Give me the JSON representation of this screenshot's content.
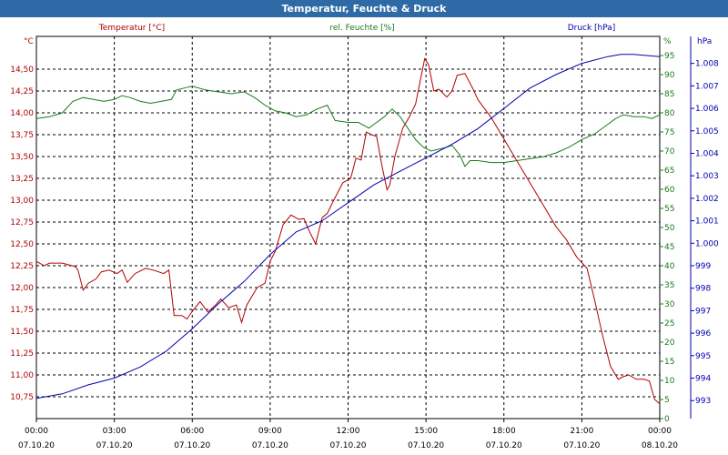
{
  "window": {
    "title": "Temperatur, Feuchte & Druck"
  },
  "colors": {
    "temperature": "#b00000",
    "humidity": "#1a7a1a",
    "pressure": "#0000b0",
    "grid": "#000000",
    "titlebar": "#2d6aa6"
  },
  "chart_data": {
    "type": "line",
    "title": "Temperatur, Feuchte & Druck",
    "x_labels": [
      {
        "time": "00:00",
        "date": "07.10.20"
      },
      {
        "time": "03:00",
        "date": "07.10.20"
      },
      {
        "time": "06:00",
        "date": "07.10.20"
      },
      {
        "time": "09:00",
        "date": "07.10.20"
      },
      {
        "time": "12:00",
        "date": "07.10.20"
      },
      {
        "time": "15:00",
        "date": "07.10.20"
      },
      {
        "time": "18:00",
        "date": "07.10.20"
      },
      {
        "time": "21:00",
        "date": "07.10.20"
      },
      {
        "time": "00:00",
        "date": "08.10.20"
      }
    ],
    "x_range_hours": [
      0,
      24
    ],
    "axes": {
      "temperature": {
        "label": "Temperatur [°C]",
        "unit": "°C",
        "range": [
          10.5,
          14.875
        ],
        "ticks": [
          "14,50",
          "14,25",
          "14,00",
          "13,75",
          "13,50",
          "13,25",
          "13,00",
          "12,75",
          "12,50",
          "12,25",
          "12,00",
          "11,75",
          "11,50",
          "11,25",
          "11,00",
          "10,75"
        ]
      },
      "humidity": {
        "label": "rel. Feuchte [%]",
        "unit": "%",
        "range": [
          0,
          100
        ],
        "ticks": [
          "95",
          "90",
          "85",
          "80",
          "75",
          "70",
          "65",
          "60",
          "55",
          "50",
          "45",
          "40",
          "35",
          "30",
          "25",
          "20",
          "15",
          "10",
          "5",
          "0"
        ]
      },
      "pressure": {
        "label": "Druck [hPa]",
        "unit": "hPa",
        "range": [
          992.2,
          1009.2
        ],
        "ticks": [
          "1.008",
          "1.007",
          "1.006",
          "1.005",
          "1.004",
          "1.003",
          "1.002",
          "1.001",
          "1.000",
          "999",
          "998",
          "997",
          "996",
          "995",
          "994",
          "993"
        ]
      }
    },
    "series": [
      {
        "name": "Temperatur",
        "axis": "temperature",
        "points": [
          [
            0,
            12.3
          ],
          [
            0.3,
            12.25
          ],
          [
            0.5,
            12.28
          ],
          [
            1.0,
            12.28
          ],
          [
            1.5,
            12.24
          ],
          [
            1.6,
            12.2
          ],
          [
            1.8,
            11.97
          ],
          [
            2.0,
            12.05
          ],
          [
            2.3,
            12.1
          ],
          [
            2.5,
            12.18
          ],
          [
            2.8,
            12.2
          ],
          [
            3.1,
            12.16
          ],
          [
            3.3,
            12.2
          ],
          [
            3.5,
            12.06
          ],
          [
            3.8,
            12.16
          ],
          [
            4.2,
            12.22
          ],
          [
            4.5,
            12.2
          ],
          [
            4.9,
            12.16
          ],
          [
            5.1,
            12.2
          ],
          [
            5.3,
            11.68
          ],
          [
            5.6,
            11.68
          ],
          [
            5.8,
            11.64
          ],
          [
            6.0,
            11.73
          ],
          [
            6.3,
            11.84
          ],
          [
            6.6,
            11.72
          ],
          [
            6.9,
            11.8
          ],
          [
            7.1,
            11.87
          ],
          [
            7.4,
            11.77
          ],
          [
            7.7,
            11.8
          ],
          [
            7.9,
            11.6
          ],
          [
            8.1,
            11.8
          ],
          [
            8.5,
            12.0
          ],
          [
            8.8,
            12.05
          ],
          [
            9.0,
            12.3
          ],
          [
            9.2,
            12.42
          ],
          [
            9.5,
            12.72
          ],
          [
            9.8,
            12.83
          ],
          [
            10.1,
            12.78
          ],
          [
            10.3,
            12.79
          ],
          [
            10.5,
            12.65
          ],
          [
            10.75,
            12.5
          ],
          [
            11.0,
            12.8
          ],
          [
            11.2,
            12.85
          ],
          [
            11.5,
            13.03
          ],
          [
            11.8,
            13.2
          ],
          [
            12.1,
            13.25
          ],
          [
            12.3,
            13.48
          ],
          [
            12.5,
            13.46
          ],
          [
            12.7,
            13.78
          ],
          [
            12.9,
            13.75
          ],
          [
            13.1,
            13.73
          ],
          [
            13.3,
            13.4
          ],
          [
            13.5,
            13.12
          ],
          [
            13.6,
            13.17
          ],
          [
            13.8,
            13.5
          ],
          [
            14.1,
            13.82
          ],
          [
            14.35,
            13.95
          ],
          [
            14.6,
            14.1
          ],
          [
            14.8,
            14.4
          ],
          [
            14.95,
            14.62
          ],
          [
            15.1,
            14.55
          ],
          [
            15.3,
            14.25
          ],
          [
            15.5,
            14.27
          ],
          [
            15.8,
            14.18
          ],
          [
            16.0,
            14.25
          ],
          [
            16.2,
            14.43
          ],
          [
            16.5,
            14.45
          ],
          [
            16.8,
            14.28
          ],
          [
            17.0,
            14.15
          ],
          [
            17.5,
            13.95
          ],
          [
            18.0,
            13.7
          ],
          [
            18.5,
            13.45
          ],
          [
            19.0,
            13.2
          ],
          [
            19.5,
            12.95
          ],
          [
            20.0,
            12.7
          ],
          [
            20.4,
            12.55
          ],
          [
            20.8,
            12.35
          ],
          [
            21.2,
            12.22
          ],
          [
            21.5,
            11.85
          ],
          [
            21.8,
            11.45
          ],
          [
            22.1,
            11.1
          ],
          [
            22.4,
            10.95
          ],
          [
            22.6,
            10.98
          ],
          [
            22.8,
            11.0
          ],
          [
            23.1,
            10.95
          ],
          [
            23.4,
            10.95
          ],
          [
            23.6,
            10.93
          ],
          [
            23.8,
            10.72
          ],
          [
            24.0,
            10.67
          ]
        ]
      },
      {
        "name": "rel. Feuchte",
        "axis": "humidity",
        "points": [
          [
            0,
            78.5
          ],
          [
            0.5,
            79
          ],
          [
            1.0,
            80
          ],
          [
            1.4,
            83
          ],
          [
            1.8,
            84
          ],
          [
            2.2,
            83.5
          ],
          [
            2.6,
            83
          ],
          [
            3.0,
            83.5
          ],
          [
            3.3,
            84.5
          ],
          [
            3.6,
            84
          ],
          [
            4.0,
            83
          ],
          [
            4.4,
            82.5
          ],
          [
            4.8,
            83
          ],
          [
            5.2,
            83.5
          ],
          [
            5.4,
            86
          ],
          [
            5.7,
            86.5
          ],
          [
            6.0,
            87
          ],
          [
            6.5,
            86
          ],
          [
            7.0,
            85.5
          ],
          [
            7.5,
            85
          ],
          [
            8.0,
            85.5
          ],
          [
            8.4,
            84
          ],
          [
            8.8,
            82
          ],
          [
            9.2,
            80.5
          ],
          [
            9.6,
            80
          ],
          [
            10.0,
            79
          ],
          [
            10.4,
            79.5
          ],
          [
            10.8,
            81
          ],
          [
            11.2,
            82
          ],
          [
            11.5,
            78
          ],
          [
            12.0,
            77.5
          ],
          [
            12.4,
            77.5
          ],
          [
            12.8,
            76
          ],
          [
            13.1,
            77.5
          ],
          [
            13.4,
            79
          ],
          [
            13.7,
            81
          ],
          [
            14.0,
            79
          ],
          [
            14.3,
            76
          ],
          [
            14.6,
            73
          ],
          [
            14.9,
            71
          ],
          [
            15.2,
            70
          ],
          [
            15.5,
            70.5
          ],
          [
            15.8,
            71
          ],
          [
            16.0,
            71.5
          ],
          [
            16.3,
            69
          ],
          [
            16.5,
            66
          ],
          [
            16.7,
            67.5
          ],
          [
            17.0,
            67.5
          ],
          [
            17.5,
            67
          ],
          [
            18.0,
            67
          ],
          [
            18.5,
            67.5
          ],
          [
            19.0,
            68
          ],
          [
            19.5,
            68.5
          ],
          [
            20.0,
            69.5
          ],
          [
            20.5,
            71
          ],
          [
            21.0,
            73
          ],
          [
            21.5,
            74.5
          ],
          [
            22.0,
            77
          ],
          [
            22.3,
            78.5
          ],
          [
            22.6,
            79.5
          ],
          [
            23.0,
            79
          ],
          [
            23.4,
            79
          ],
          [
            23.7,
            78.5
          ],
          [
            24.0,
            79.5
          ]
        ]
      },
      {
        "name": "Druck",
        "axis": "pressure",
        "points": [
          [
            0,
            993.1
          ],
          [
            1.0,
            993.3
          ],
          [
            2.0,
            993.7
          ],
          [
            3.0,
            994.0
          ],
          [
            4.0,
            994.5
          ],
          [
            5.0,
            995.2
          ],
          [
            6.0,
            996.2
          ],
          [
            7.0,
            997.3
          ],
          [
            8.0,
            998.3
          ],
          [
            9.0,
            999.5
          ],
          [
            10.0,
            1000.5
          ],
          [
            11.0,
            1001.0
          ],
          [
            12.0,
            1001.8
          ],
          [
            13.0,
            1002.6
          ],
          [
            14.0,
            1003.2
          ],
          [
            15.0,
            1003.8
          ],
          [
            16.0,
            1004.4
          ],
          [
            17.0,
            1005.1
          ],
          [
            18.0,
            1006.0
          ],
          [
            19.0,
            1006.9
          ],
          [
            20.0,
            1007.5
          ],
          [
            21.0,
            1008.0
          ],
          [
            22.0,
            1008.3
          ],
          [
            22.5,
            1008.4
          ],
          [
            23.0,
            1008.4
          ],
          [
            24.0,
            1008.3
          ]
        ]
      }
    ]
  }
}
